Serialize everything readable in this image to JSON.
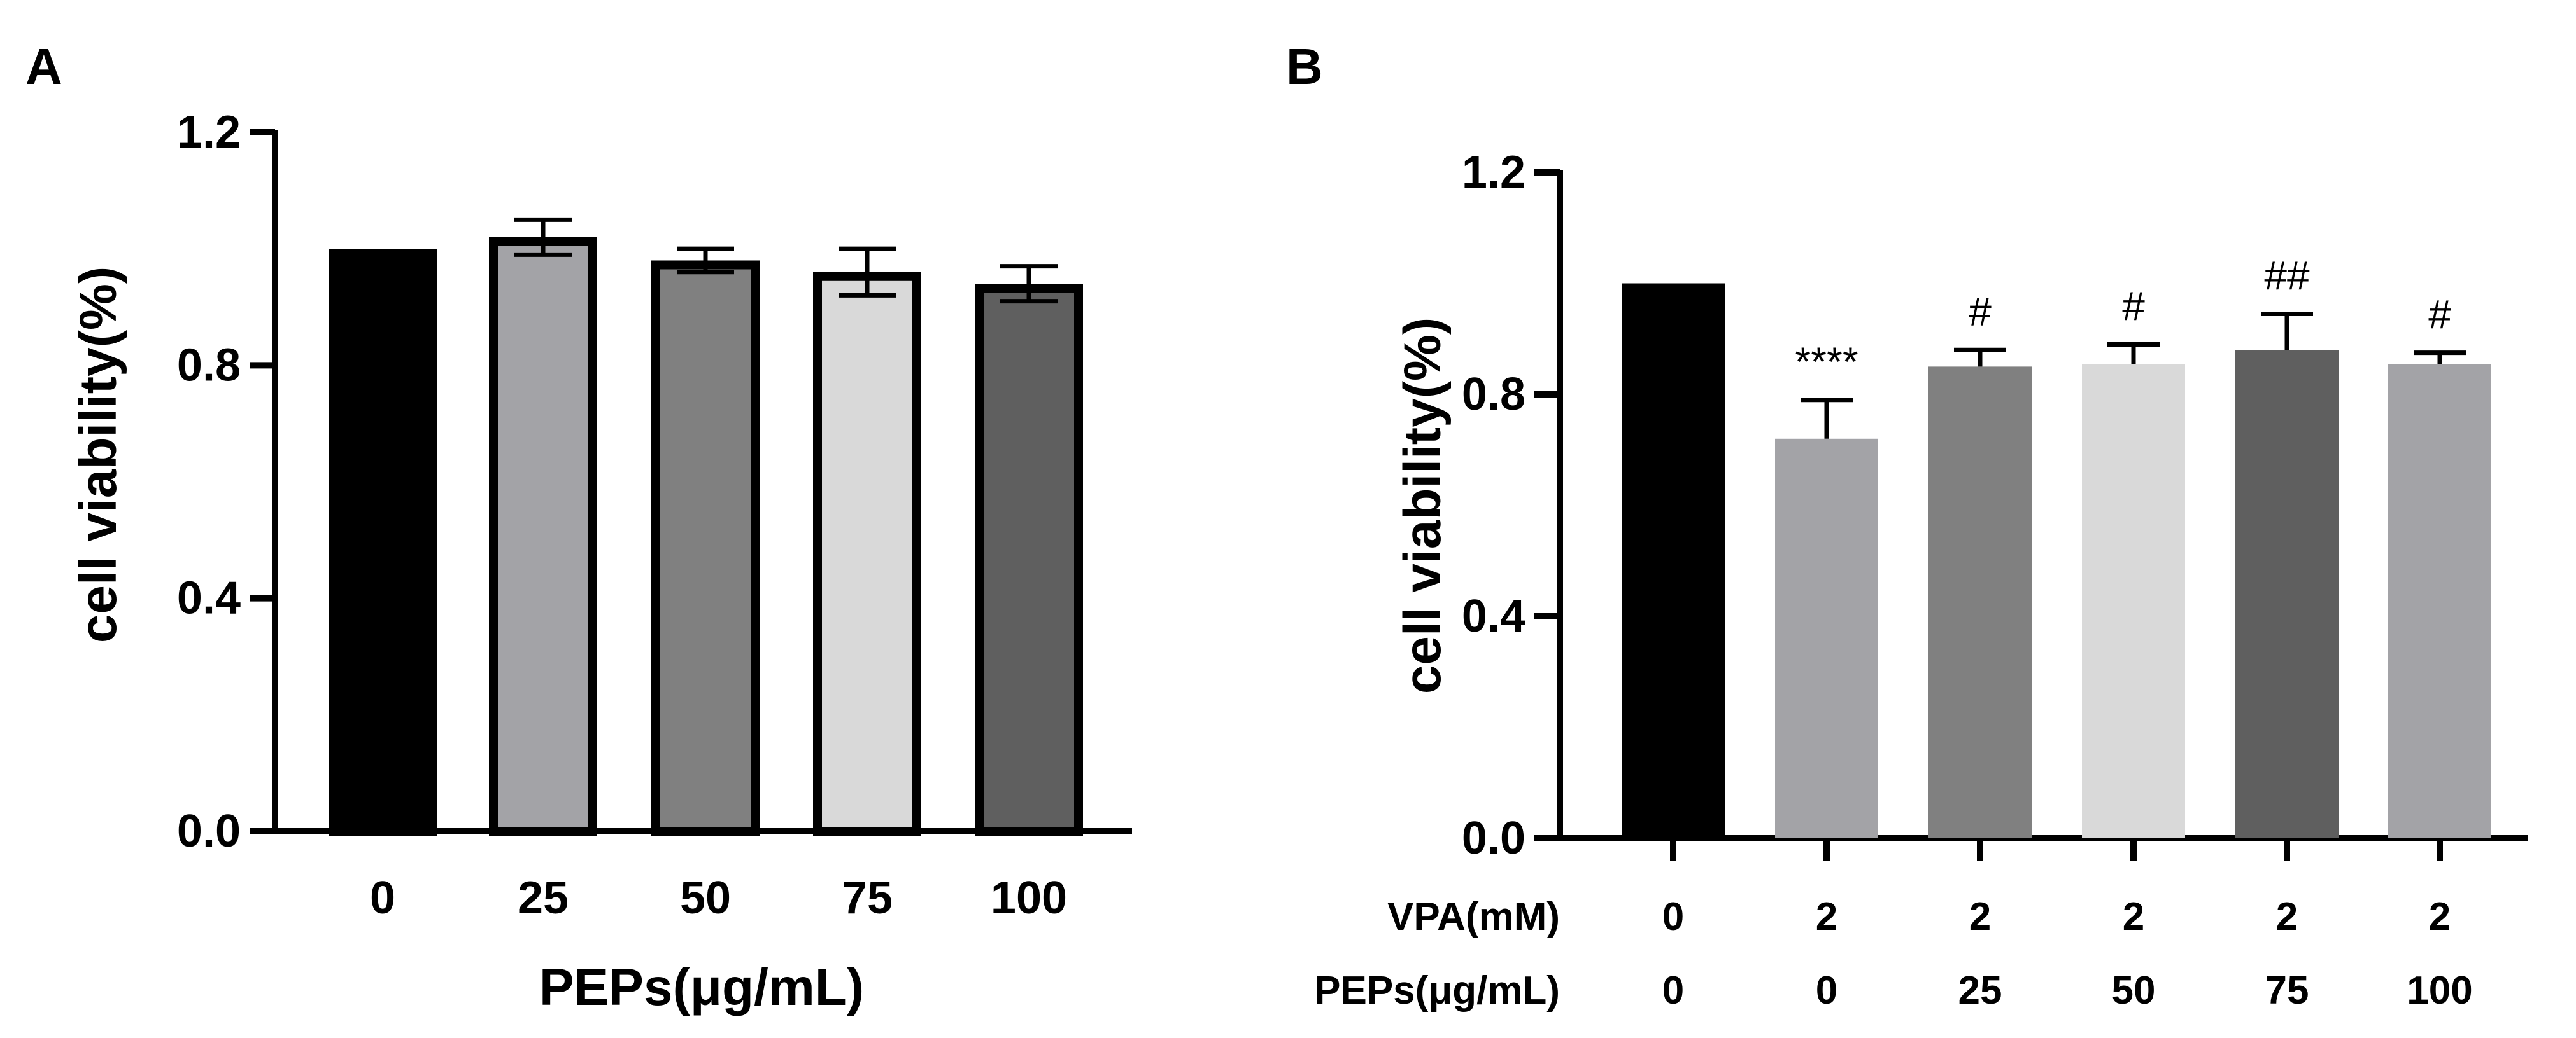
{
  "chart_data": [
    {
      "panel": "A",
      "type": "bar",
      "xlabel": "PEPs(μg/mL)",
      "ylabel": "cell viability(%)",
      "ylim": [
        0,
        1.2
      ],
      "yticks": [
        "0.0",
        "0.4",
        "0.8",
        "1.2"
      ],
      "categories": [
        "0",
        "25",
        "50",
        "75",
        "100"
      ],
      "values": [
        1.0,
        1.02,
        0.98,
        0.96,
        0.94
      ],
      "errors": [
        0.0,
        0.03,
        0.02,
        0.04,
        0.03
      ],
      "colors": [
        "#000000",
        "#a3a3a7",
        "#808080",
        "#d9d9d9",
        "#5f5f5f"
      ]
    },
    {
      "panel": "B",
      "type": "bar",
      "xlabel": "",
      "ylabel": "cell viability(%)",
      "ylim": [
        0,
        1.2
      ],
      "yticks": [
        "0.0",
        "0.4",
        "0.8",
        "1.2"
      ],
      "row_labels": [
        "VPA(mM)",
        "PEPs(μg/mL)"
      ],
      "rows": [
        [
          "0",
          "2",
          "2",
          "2",
          "2",
          "2"
        ],
        [
          "0",
          "0",
          "25",
          "50",
          "75",
          "100"
        ]
      ],
      "values": [
        1.0,
        0.72,
        0.85,
        0.855,
        0.88,
        0.855
      ],
      "errors": [
        0.0,
        0.07,
        0.03,
        0.035,
        0.065,
        0.02
      ],
      "annotations": [
        "",
        "****",
        "#",
        "#",
        "##",
        "#"
      ],
      "colors": [
        "#000000",
        "#a3a3a7",
        "#808080",
        "#d9d9d9",
        "#5f5f5f",
        "#a3a3a7"
      ]
    }
  ]
}
